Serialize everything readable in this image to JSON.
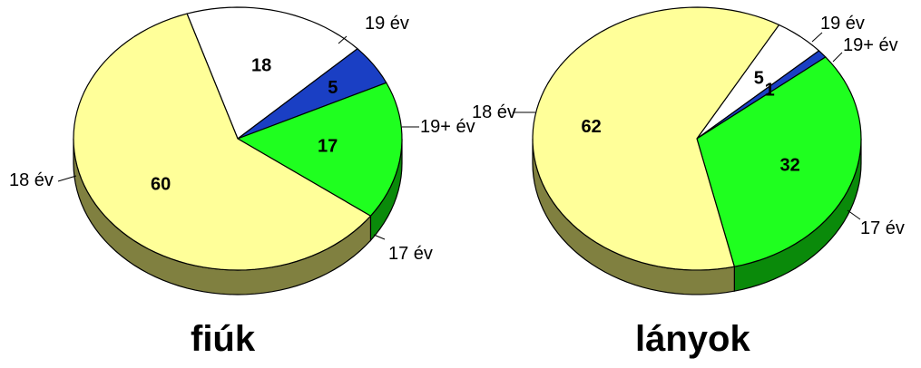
{
  "chart_data": [
    {
      "type": "pie",
      "title": "fiúk",
      "labels": [
        "19 év",
        "19+ év",
        "17 év",
        "18 év"
      ],
      "values": [
        18,
        5,
        17,
        60
      ],
      "colors": [
        "#ffffff",
        "#1a3fc4",
        "#1fff1f",
        "#ffff99"
      ],
      "side_colors": [
        "#8a8a8a",
        "#0b1f66",
        "#0a8a0a",
        "#808040"
      ],
      "style": "3d"
    },
    {
      "type": "pie",
      "title": "lányok",
      "labels": [
        "19 év",
        "19+ év",
        "17 év",
        "18 év"
      ],
      "values": [
        5,
        1,
        32,
        62
      ],
      "colors": [
        "#ffffff",
        "#1a3fc4",
        "#1fff1f",
        "#ffff99"
      ],
      "side_colors": [
        "#8a8a8a",
        "#0b1f66",
        "#0a8a0a",
        "#808040"
      ],
      "style": "3d"
    }
  ]
}
